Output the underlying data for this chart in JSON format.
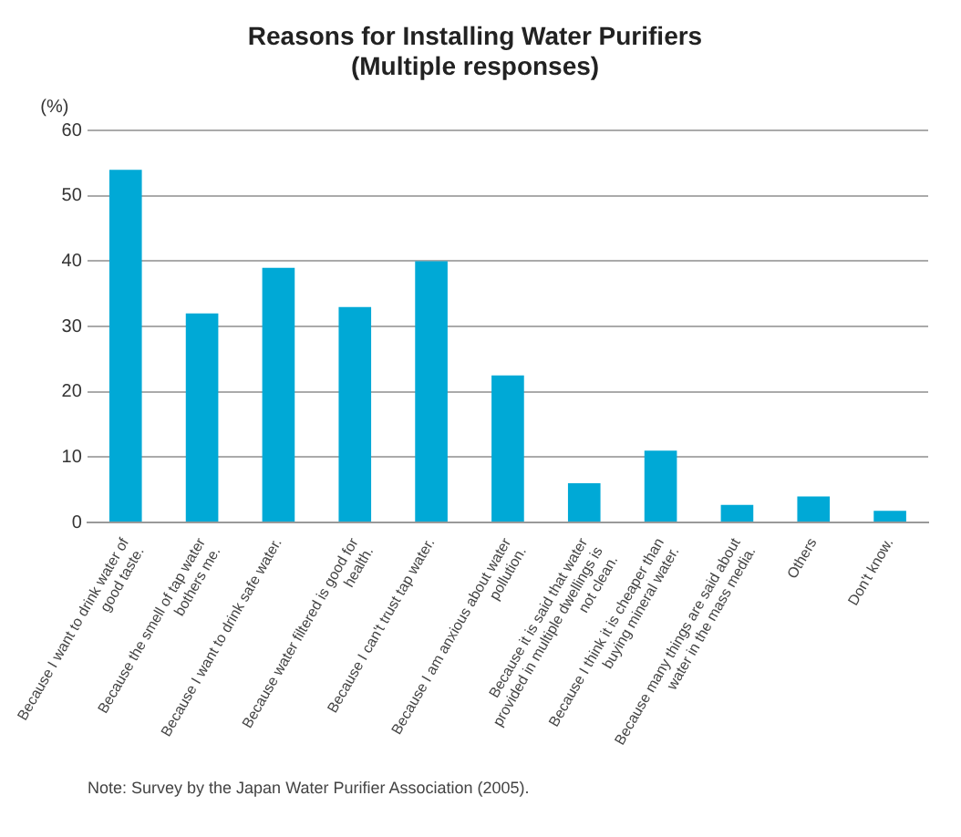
{
  "chart_data": {
    "type": "bar",
    "title": "Reasons for Installing Water Purifiers\n(Multiple responses)",
    "ylabel": "(%)",
    "categories": [
      "Because I want to drink water of good taste.",
      "Because the smell of tap water bothers me.",
      "Because I want to drink safe water.",
      "Because water filtered is good for health.",
      "Because I can't trust tap water.",
      "Because I am anxious about water pollution.",
      "Because it is said that water provided in multiple dwellings is not clean.",
      "Because I think it is cheaper than buying mineral water.",
      "Because many things are said about water in the mass media.",
      "Others",
      "Don't know."
    ],
    "values": [
      54,
      32,
      39,
      33,
      40,
      22.5,
      6,
      11,
      2.7,
      4,
      1.8
    ],
    "color": "#00a9d6",
    "ylim": [
      0,
      60
    ],
    "yticks": [
      0,
      10,
      20,
      30,
      40,
      50,
      60
    ],
    "grid": "y",
    "legend": false,
    "annotations": [
      "Note: Survey by the Japan Water Purifier Association (2005)."
    ]
  }
}
